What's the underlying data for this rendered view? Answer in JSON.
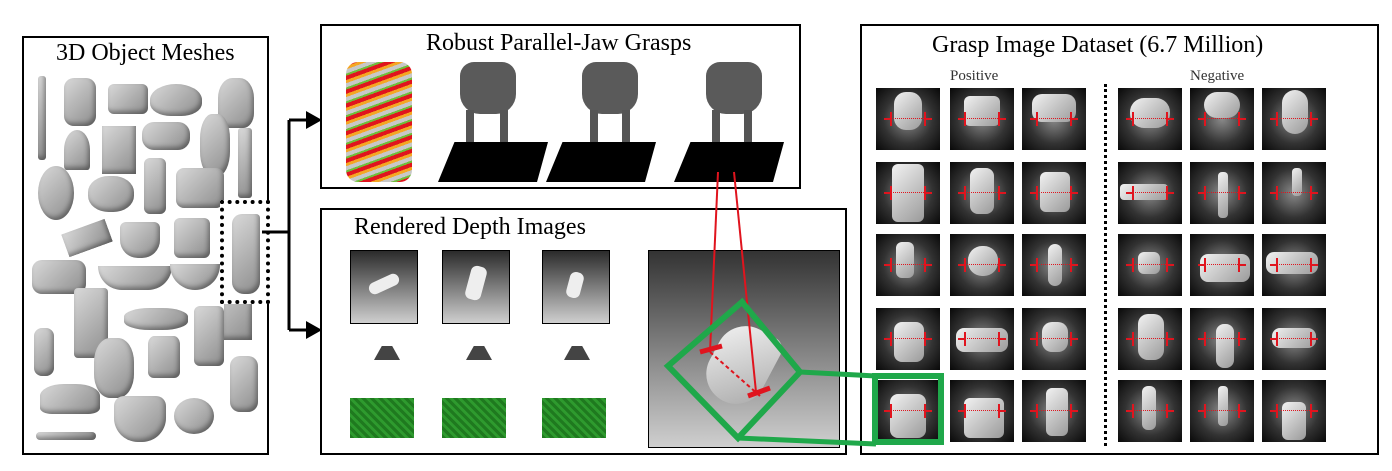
{
  "panels": {
    "meshes": {
      "title": "3D Object Meshes"
    },
    "grasps": {
      "title": "Robust Parallel-Jaw Grasps"
    },
    "depth": {
      "title": "Rendered Depth Images"
    },
    "dataset": {
      "title": "Grasp Image Dataset (6.7 Million)",
      "positive_label": "Positive",
      "negative_label": "Negative"
    }
  },
  "colors": {
    "grasp_axis": "#e0141e",
    "highlight": "#1fa84a",
    "frame": "#000000"
  }
}
